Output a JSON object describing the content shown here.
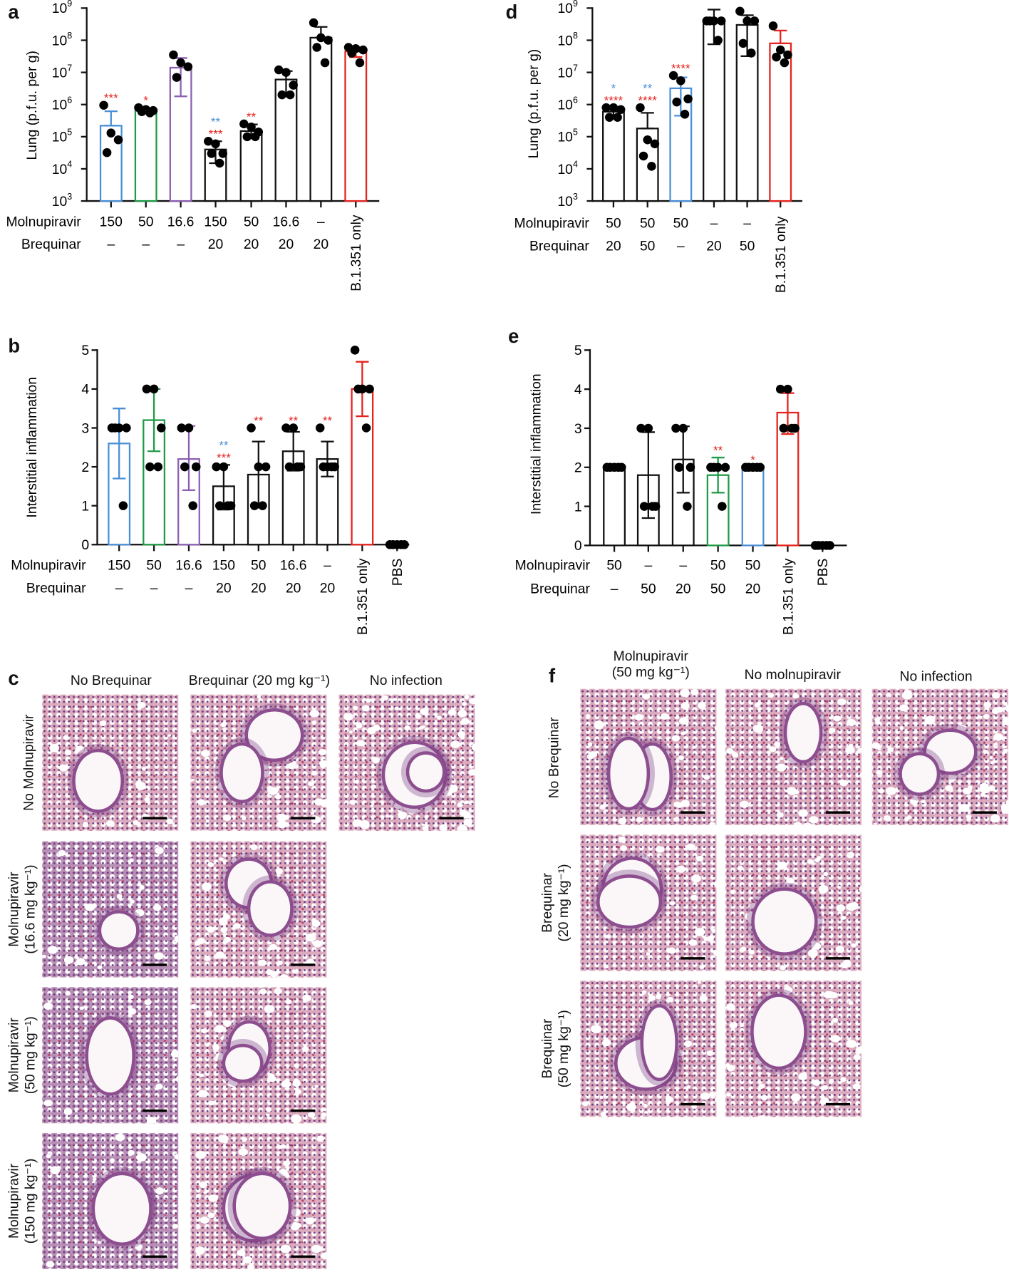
{
  "panel_letters": {
    "a": "a",
    "b": "b",
    "c": "c",
    "d": "d",
    "e": "e",
    "f": "f"
  },
  "colors": {
    "blue": "#4a8fd6",
    "green": "#1f9a45",
    "purple": "#8c5fb3",
    "red": "#e6221c",
    "black": "#111111"
  },
  "chart_data": [
    {
      "id": "a",
      "type": "bar",
      "yscale": "log",
      "ylim": [
        1000,
        1000000000
      ],
      "ylabel": "Lung (p.f.u. per g)",
      "yticks": [
        {
          "base": "10",
          "exp": "3"
        },
        {
          "base": "10",
          "exp": "4"
        },
        {
          "base": "10",
          "exp": "5"
        },
        {
          "base": "10",
          "exp": "6"
        },
        {
          "base": "10",
          "exp": "7"
        },
        {
          "base": "10",
          "exp": "8"
        },
        {
          "base": "10",
          "exp": "9"
        }
      ],
      "row_labels": [
        "Molnupiravir",
        "Brequinar"
      ],
      "groups": [
        {
          "mol": "150",
          "breq": "–",
          "color": "blue",
          "mean": 220000,
          "err": [
            220000,
            620000
          ],
          "points": [
            950000,
            130000,
            80000,
            32000
          ],
          "stars": [
            {
              "text": "***",
              "color": "red"
            }
          ]
        },
        {
          "mol": "50",
          "breq": "–",
          "color": "green",
          "mean": 650000,
          "err": [
            650000,
            700000
          ],
          "points": [
            800000,
            700000,
            650000,
            600000,
            550000
          ],
          "stars": [
            {
              "text": "*",
              "color": "red"
            }
          ]
        },
        {
          "mol": "16.6",
          "breq": "–",
          "color": "purple",
          "mean": 14000000,
          "err": [
            1800000,
            28000000
          ],
          "points": [
            35000000,
            20000000,
            15000000,
            7000000
          ],
          "stars": []
        },
        {
          "mol": "150",
          "breq": "20",
          "color": "black",
          "mean": 40000,
          "err": [
            15000,
            72000
          ],
          "points": [
            72000,
            60000,
            30000,
            30000,
            15000
          ],
          "stars": [
            {
              "text": "**",
              "color": "blue"
            },
            {
              "text": "***",
              "color": "red"
            }
          ]
        },
        {
          "mol": "50",
          "breq": "20",
          "color": "black",
          "mean": 150000,
          "err": [
            90000,
            240000
          ],
          "points": [
            250000,
            200000,
            140000,
            100000,
            100000
          ],
          "stars": [
            {
              "text": "**",
              "color": "red"
            }
          ]
        },
        {
          "mol": "16.6",
          "breq": "20",
          "color": "black",
          "mean": 6000000,
          "err": [
            2000000,
            11000000
          ],
          "points": [
            12000000,
            10000000,
            4000000,
            2000000,
            2000000
          ],
          "stars": []
        },
        {
          "mol": "–",
          "breq": "20",
          "color": "black",
          "mean": 120000000,
          "err": [
            120000000,
            260000000
          ],
          "points": [
            350000000,
            120000000,
            100000000,
            60000000,
            20000000
          ],
          "stars": []
        },
        {
          "label": "B.1.351 only",
          "color": "red",
          "mean": 45000000,
          "err": [
            30000000,
            60000000
          ],
          "points": [
            60000000,
            55000000,
            50000000,
            40000000,
            20000000
          ],
          "stars": []
        }
      ]
    },
    {
      "id": "d",
      "type": "bar",
      "yscale": "log",
      "ylim": [
        1000,
        1000000000
      ],
      "ylabel": "Lung (p.f.u. per g)",
      "yticks": [
        {
          "base": "10",
          "exp": "3"
        },
        {
          "base": "10",
          "exp": "4"
        },
        {
          "base": "10",
          "exp": "5"
        },
        {
          "base": "10",
          "exp": "6"
        },
        {
          "base": "10",
          "exp": "7"
        },
        {
          "base": "10",
          "exp": "8"
        },
        {
          "base": "10",
          "exp": "9"
        }
      ],
      "row_labels": [
        "Molnupiravir",
        "Brequinar"
      ],
      "groups": [
        {
          "mol": "50",
          "breq": "20",
          "color": "black",
          "mean": 600000,
          "err": [
            450000,
            750000
          ],
          "points": [
            800000,
            800000,
            700000,
            400000,
            400000
          ],
          "stars": [
            {
              "text": "*",
              "color": "blue"
            },
            {
              "text": "****",
              "color": "red"
            }
          ]
        },
        {
          "mol": "50",
          "breq": "50",
          "color": "black",
          "mean": 180000,
          "err": [
            180000,
            550000
          ],
          "points": [
            800000,
            80000,
            60000,
            25000,
            12000
          ],
          "stars": [
            {
              "text": "**",
              "color": "blue"
            },
            {
              "text": "****",
              "color": "red"
            }
          ]
        },
        {
          "mol": "50",
          "breq": "–",
          "color": "blue",
          "mean": 3200000,
          "err": [
            450000,
            7000000
          ],
          "points": [
            8000000,
            5500000,
            1500000,
            1200000,
            500000
          ],
          "stars": [
            {
              "text": "****",
              "color": "red"
            }
          ]
        },
        {
          "mol": "–",
          "breq": "20",
          "color": "black",
          "mean": 400000000,
          "err": [
            75000000,
            900000000
          ],
          "points": [
            400000000,
            400000000,
            400000000,
            400000000,
            100000000
          ],
          "stars": []
        },
        {
          "mol": "–",
          "breq": "50",
          "color": "black",
          "mean": 300000000,
          "err": [
            32000000,
            600000000
          ],
          "points": [
            800000000,
            400000000,
            400000000,
            80000000,
            40000000
          ],
          "stars": []
        },
        {
          "label": "B.1.351 only",
          "color": "red",
          "mean": 80000000,
          "err": [
            80000000,
            200000000
          ],
          "points": [
            280000000,
            50000000,
            35000000,
            30000000,
            20000000
          ],
          "stars": []
        }
      ]
    },
    {
      "id": "b",
      "type": "bar",
      "yscale": "linear",
      "ylim": [
        0,
        5
      ],
      "ylabel": "Interstitial inflammation",
      "yticks": [
        "0",
        "1",
        "2",
        "3",
        "4",
        "5"
      ],
      "row_labels": [
        "Molnupiravir",
        "Brequinar"
      ],
      "groups": [
        {
          "mol": "150",
          "breq": "–",
          "color": "blue",
          "mean": 2.6,
          "err": [
            1.7,
            3.5
          ],
          "points": [
            3,
            3,
            3,
            3,
            1
          ],
          "stars": []
        },
        {
          "mol": "50",
          "breq": "–",
          "color": "green",
          "mean": 3.2,
          "err": [
            2.4,
            4.0
          ],
          "points": [
            4,
            4,
            3,
            2,
            2
          ],
          "stars": []
        },
        {
          "mol": "16.6",
          "breq": "–",
          "color": "purple",
          "mean": 2.2,
          "err": [
            1.4,
            3.05
          ],
          "points": [
            3,
            3,
            2,
            2,
            1
          ],
          "stars": []
        },
        {
          "mol": "150",
          "breq": "20",
          "color": "black",
          "mean": 1.5,
          "err": [
            0.9,
            2.05
          ],
          "points": [
            2,
            2,
            1,
            1,
            1
          ],
          "stars": [
            {
              "text": "**",
              "color": "blue"
            },
            {
              "text": "***",
              "color": "red"
            }
          ]
        },
        {
          "mol": "50",
          "breq": "20",
          "color": "black",
          "mean": 1.8,
          "err": [
            0.95,
            2.65
          ],
          "points": [
            3,
            2,
            2,
            1,
            1
          ],
          "stars": [
            {
              "text": "**",
              "color": "red"
            }
          ]
        },
        {
          "mol": "16.6",
          "breq": "20",
          "color": "black",
          "mean": 2.4,
          "err": [
            1.9,
            2.9
          ],
          "points": [
            3,
            3,
            2,
            2,
            2
          ],
          "stars": [
            {
              "text": "**",
              "color": "red"
            }
          ]
        },
        {
          "mol": "–",
          "breq": "20",
          "color": "black",
          "mean": 2.2,
          "err": [
            1.75,
            2.65
          ],
          "points": [
            3,
            2,
            2,
            2,
            2
          ],
          "stars": [
            {
              "text": "**",
              "color": "red"
            }
          ]
        },
        {
          "label": "B.1.351 only",
          "color": "red",
          "mean": 4.0,
          "err": [
            3.3,
            4.7
          ],
          "points": [
            5,
            4,
            4,
            4,
            3
          ],
          "stars": []
        },
        {
          "label": "PBS",
          "color": "black",
          "mean": 0,
          "err": [
            0,
            0
          ],
          "points": [
            0,
            0,
            0,
            0,
            0
          ],
          "stars": []
        }
      ]
    },
    {
      "id": "e",
      "type": "bar",
      "yscale": "linear",
      "ylim": [
        0,
        5
      ],
      "ylabel": "Interstitial inflammation",
      "yticks": [
        "0",
        "1",
        "2",
        "3",
        "4",
        "5"
      ],
      "row_labels": [
        "Molnupiravir",
        "Brequinar"
      ],
      "groups": [
        {
          "mol": "50",
          "breq": "–",
          "color": "black",
          "mean": 2.0,
          "err": [
            2.0,
            2.0
          ],
          "points": [
            2,
            2,
            2,
            2,
            2
          ],
          "stars": []
        },
        {
          "mol": "–",
          "breq": "50",
          "color": "black",
          "mean": 1.8,
          "err": [
            0.7,
            2.9
          ],
          "points": [
            3,
            3,
            1,
            1,
            1
          ],
          "stars": []
        },
        {
          "mol": "–",
          "breq": "20",
          "color": "black",
          "mean": 2.2,
          "err": [
            1.35,
            3.05
          ],
          "points": [
            3,
            3,
            2,
            2,
            1
          ],
          "stars": []
        },
        {
          "mol": "50",
          "breq": "50",
          "color": "green",
          "mean": 1.8,
          "err": [
            1.35,
            2.25
          ],
          "points": [
            2,
            2,
            2,
            2,
            1
          ],
          "stars": [
            {
              "text": "**",
              "color": "red"
            }
          ]
        },
        {
          "mol": "50",
          "breq": "20",
          "color": "blue",
          "mean": 2.0,
          "err": [
            2.0,
            2.0
          ],
          "points": [
            2,
            2,
            2,
            2,
            2
          ],
          "stars": [
            {
              "text": "*",
              "color": "red"
            }
          ]
        },
        {
          "label": "B.1.351 only",
          "color": "red",
          "mean": 3.4,
          "err": [
            2.85,
            3.9
          ],
          "points": [
            4,
            4,
            3,
            3,
            3
          ],
          "stars": []
        },
        {
          "label": "PBS",
          "color": "black",
          "mean": 0,
          "err": [
            0,
            0
          ],
          "points": [
            0,
            0,
            0,
            0,
            0
          ],
          "stars": []
        }
      ]
    }
  ],
  "panel_c": {
    "columns": [
      "No Brequinar",
      "Brequinar (20 mg kg⁻¹)",
      "No infection"
    ],
    "rows": [
      {
        "line1": "No Molnupiravir",
        "line2": ""
      },
      {
        "line1": "Molnupiravir",
        "line2": "(16.6 mg kg⁻¹)"
      },
      {
        "line1": "Molnupiravir",
        "line2": "(50 mg kg⁻¹)"
      },
      {
        "line1": "Molnupiravir",
        "line2": "(150 mg kg⁻¹)"
      }
    ]
  },
  "panel_f": {
    "columns": [
      {
        "line1": "Molnupiravir",
        "line2": "(50 mg kg⁻¹)"
      },
      {
        "line1": "No molnupiravir",
        "line2": ""
      },
      {
        "line1": "No infection",
        "line2": ""
      }
    ],
    "rows": [
      {
        "line1": "No Brequinar",
        "line2": ""
      },
      {
        "line1": "Brequinar",
        "line2": "(20 mg kg⁻¹)"
      },
      {
        "line1": "Brequinar",
        "line2": "(50 mg kg⁻¹)"
      }
    ]
  }
}
